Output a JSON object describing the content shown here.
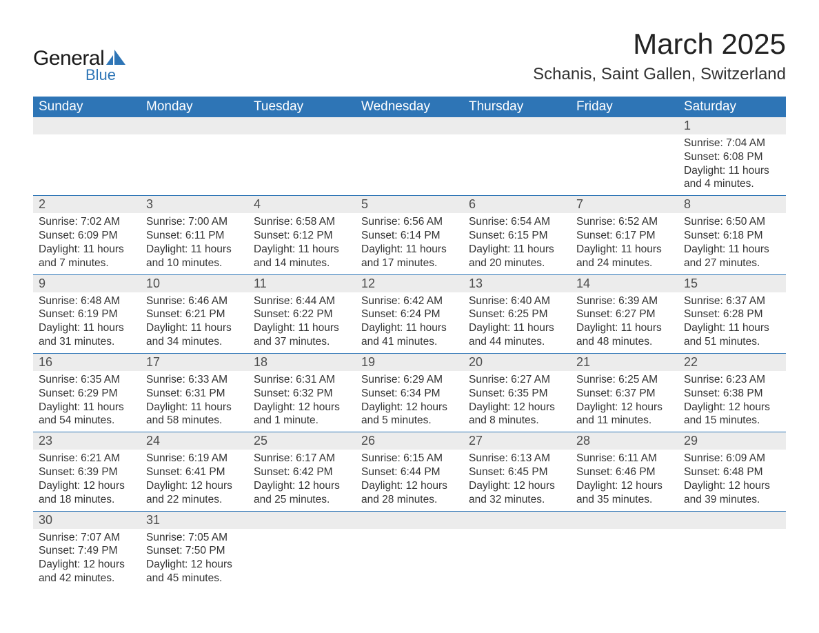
{
  "brand": {
    "general": "General",
    "blue": "Blue"
  },
  "title": "March 2025",
  "location": "Schanis, Saint Gallen, Switzerland",
  "colors": {
    "header_bg": "#2e75b6",
    "header_text": "#ffffff",
    "daynum_bg": "#ececec",
    "border": "#2e75b6",
    "text": "#333333",
    "logo_blue": "#2e75b6"
  },
  "fonts": {
    "title_size": 42,
    "location_size": 24,
    "header_size": 19,
    "body_size": 15.5
  },
  "day_headers": [
    "Sunday",
    "Monday",
    "Tuesday",
    "Wednesday",
    "Thursday",
    "Friday",
    "Saturday"
  ],
  "weeks": [
    {
      "nums": [
        "",
        "",
        "",
        "",
        "",
        "",
        "1"
      ],
      "cells": [
        null,
        null,
        null,
        null,
        null,
        null,
        {
          "sunrise": "Sunrise: 7:04 AM",
          "sunset": "Sunset: 6:08 PM",
          "day1": "Daylight: 11 hours",
          "day2": "and 4 minutes."
        }
      ]
    },
    {
      "nums": [
        "2",
        "3",
        "4",
        "5",
        "6",
        "7",
        "8"
      ],
      "cells": [
        {
          "sunrise": "Sunrise: 7:02 AM",
          "sunset": "Sunset: 6:09 PM",
          "day1": "Daylight: 11 hours",
          "day2": "and 7 minutes."
        },
        {
          "sunrise": "Sunrise: 7:00 AM",
          "sunset": "Sunset: 6:11 PM",
          "day1": "Daylight: 11 hours",
          "day2": "and 10 minutes."
        },
        {
          "sunrise": "Sunrise: 6:58 AM",
          "sunset": "Sunset: 6:12 PM",
          "day1": "Daylight: 11 hours",
          "day2": "and 14 minutes."
        },
        {
          "sunrise": "Sunrise: 6:56 AM",
          "sunset": "Sunset: 6:14 PM",
          "day1": "Daylight: 11 hours",
          "day2": "and 17 minutes."
        },
        {
          "sunrise": "Sunrise: 6:54 AM",
          "sunset": "Sunset: 6:15 PM",
          "day1": "Daylight: 11 hours",
          "day2": "and 20 minutes."
        },
        {
          "sunrise": "Sunrise: 6:52 AM",
          "sunset": "Sunset: 6:17 PM",
          "day1": "Daylight: 11 hours",
          "day2": "and 24 minutes."
        },
        {
          "sunrise": "Sunrise: 6:50 AM",
          "sunset": "Sunset: 6:18 PM",
          "day1": "Daylight: 11 hours",
          "day2": "and 27 minutes."
        }
      ]
    },
    {
      "nums": [
        "9",
        "10",
        "11",
        "12",
        "13",
        "14",
        "15"
      ],
      "cells": [
        {
          "sunrise": "Sunrise: 6:48 AM",
          "sunset": "Sunset: 6:19 PM",
          "day1": "Daylight: 11 hours",
          "day2": "and 31 minutes."
        },
        {
          "sunrise": "Sunrise: 6:46 AM",
          "sunset": "Sunset: 6:21 PM",
          "day1": "Daylight: 11 hours",
          "day2": "and 34 minutes."
        },
        {
          "sunrise": "Sunrise: 6:44 AM",
          "sunset": "Sunset: 6:22 PM",
          "day1": "Daylight: 11 hours",
          "day2": "and 37 minutes."
        },
        {
          "sunrise": "Sunrise: 6:42 AM",
          "sunset": "Sunset: 6:24 PM",
          "day1": "Daylight: 11 hours",
          "day2": "and 41 minutes."
        },
        {
          "sunrise": "Sunrise: 6:40 AM",
          "sunset": "Sunset: 6:25 PM",
          "day1": "Daylight: 11 hours",
          "day2": "and 44 minutes."
        },
        {
          "sunrise": "Sunrise: 6:39 AM",
          "sunset": "Sunset: 6:27 PM",
          "day1": "Daylight: 11 hours",
          "day2": "and 48 minutes."
        },
        {
          "sunrise": "Sunrise: 6:37 AM",
          "sunset": "Sunset: 6:28 PM",
          "day1": "Daylight: 11 hours",
          "day2": "and 51 minutes."
        }
      ]
    },
    {
      "nums": [
        "16",
        "17",
        "18",
        "19",
        "20",
        "21",
        "22"
      ],
      "cells": [
        {
          "sunrise": "Sunrise: 6:35 AM",
          "sunset": "Sunset: 6:29 PM",
          "day1": "Daylight: 11 hours",
          "day2": "and 54 minutes."
        },
        {
          "sunrise": "Sunrise: 6:33 AM",
          "sunset": "Sunset: 6:31 PM",
          "day1": "Daylight: 11 hours",
          "day2": "and 58 minutes."
        },
        {
          "sunrise": "Sunrise: 6:31 AM",
          "sunset": "Sunset: 6:32 PM",
          "day1": "Daylight: 12 hours",
          "day2": "and 1 minute."
        },
        {
          "sunrise": "Sunrise: 6:29 AM",
          "sunset": "Sunset: 6:34 PM",
          "day1": "Daylight: 12 hours",
          "day2": "and 5 minutes."
        },
        {
          "sunrise": "Sunrise: 6:27 AM",
          "sunset": "Sunset: 6:35 PM",
          "day1": "Daylight: 12 hours",
          "day2": "and 8 minutes."
        },
        {
          "sunrise": "Sunrise: 6:25 AM",
          "sunset": "Sunset: 6:37 PM",
          "day1": "Daylight: 12 hours",
          "day2": "and 11 minutes."
        },
        {
          "sunrise": "Sunrise: 6:23 AM",
          "sunset": "Sunset: 6:38 PM",
          "day1": "Daylight: 12 hours",
          "day2": "and 15 minutes."
        }
      ]
    },
    {
      "nums": [
        "23",
        "24",
        "25",
        "26",
        "27",
        "28",
        "29"
      ],
      "cells": [
        {
          "sunrise": "Sunrise: 6:21 AM",
          "sunset": "Sunset: 6:39 PM",
          "day1": "Daylight: 12 hours",
          "day2": "and 18 minutes."
        },
        {
          "sunrise": "Sunrise: 6:19 AM",
          "sunset": "Sunset: 6:41 PM",
          "day1": "Daylight: 12 hours",
          "day2": "and 22 minutes."
        },
        {
          "sunrise": "Sunrise: 6:17 AM",
          "sunset": "Sunset: 6:42 PM",
          "day1": "Daylight: 12 hours",
          "day2": "and 25 minutes."
        },
        {
          "sunrise": "Sunrise: 6:15 AM",
          "sunset": "Sunset: 6:44 PM",
          "day1": "Daylight: 12 hours",
          "day2": "and 28 minutes."
        },
        {
          "sunrise": "Sunrise: 6:13 AM",
          "sunset": "Sunset: 6:45 PM",
          "day1": "Daylight: 12 hours",
          "day2": "and 32 minutes."
        },
        {
          "sunrise": "Sunrise: 6:11 AM",
          "sunset": "Sunset: 6:46 PM",
          "day1": "Daylight: 12 hours",
          "day2": "and 35 minutes."
        },
        {
          "sunrise": "Sunrise: 6:09 AM",
          "sunset": "Sunset: 6:48 PM",
          "day1": "Daylight: 12 hours",
          "day2": "and 39 minutes."
        }
      ]
    },
    {
      "nums": [
        "30",
        "31",
        "",
        "",
        "",
        "",
        ""
      ],
      "cells": [
        {
          "sunrise": "Sunrise: 7:07 AM",
          "sunset": "Sunset: 7:49 PM",
          "day1": "Daylight: 12 hours",
          "day2": "and 42 minutes."
        },
        {
          "sunrise": "Sunrise: 7:05 AM",
          "sunset": "Sunset: 7:50 PM",
          "day1": "Daylight: 12 hours",
          "day2": "and 45 minutes."
        },
        null,
        null,
        null,
        null,
        null
      ]
    }
  ]
}
